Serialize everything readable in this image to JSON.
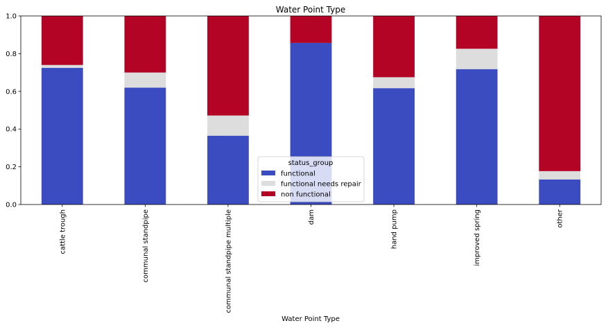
{
  "chart_data": {
    "type": "bar",
    "stacked": true,
    "title": "Water Point Type",
    "xlabel": "Water Point Type",
    "ylabel": "",
    "ylim": [
      0,
      1.0
    ],
    "yticks": [
      "0.0",
      "0.2",
      "0.4",
      "0.6",
      "0.8",
      "1.0"
    ],
    "grid": false,
    "categories": [
      "cattle trough",
      "communal standpipe",
      "communal standpipe multiple",
      "dam",
      "hand pump",
      "improved spring",
      "other"
    ],
    "legend": {
      "title": "status_group",
      "placement": "lower-center"
    },
    "series": [
      {
        "name": "functional",
        "color": "#3b4cc0",
        "values": [
          0.725,
          0.62,
          0.365,
          0.857,
          0.617,
          0.718,
          0.133
        ]
      },
      {
        "name": "functional needs repair",
        "color": "#dddddd",
        "values": [
          0.015,
          0.08,
          0.107,
          0.0,
          0.058,
          0.108,
          0.044
        ]
      },
      {
        "name": "non functional",
        "color": "#b40426",
        "values": [
          0.26,
          0.3,
          0.528,
          0.143,
          0.325,
          0.174,
          0.823
        ]
      }
    ]
  }
}
